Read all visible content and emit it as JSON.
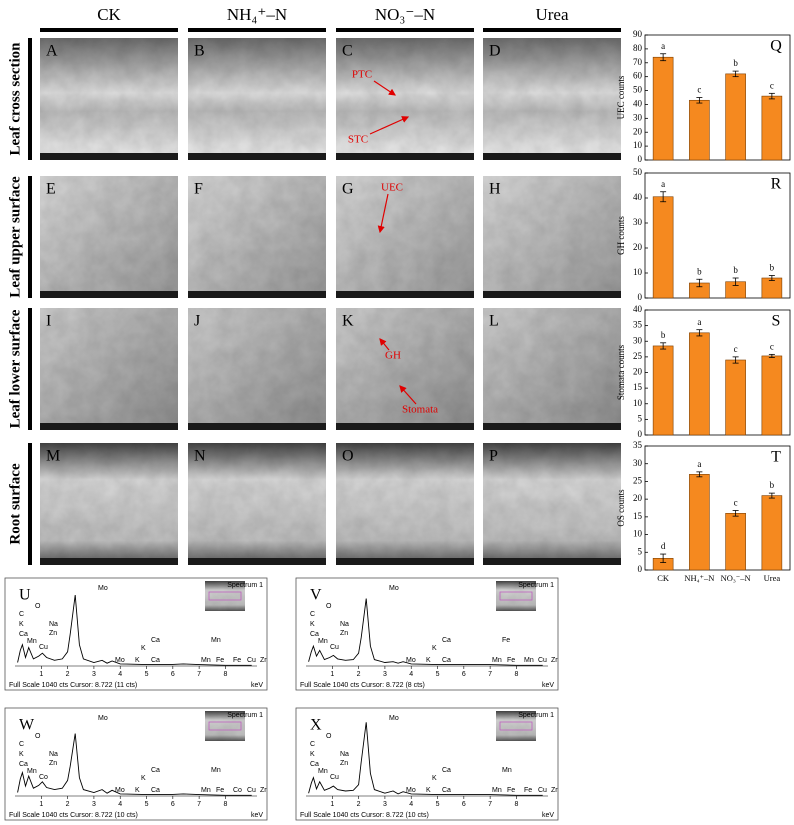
{
  "columns": [
    "CK",
    "NH₄⁺–N",
    "NO₃⁻–N",
    "Urea"
  ],
  "rows": [
    "Leaf cross section",
    "Leaf upper surface",
    "Leaf lower surface",
    "Root surface"
  ],
  "panels": [
    {
      "letter": "A"
    },
    {
      "letter": "B"
    },
    {
      "letter": "C",
      "annotations": [
        "PTC",
        "STC"
      ]
    },
    {
      "letter": "D"
    },
    {
      "letter": "E"
    },
    {
      "letter": "F"
    },
    {
      "letter": "G",
      "annotations": [
        "UEC"
      ]
    },
    {
      "letter": "H"
    },
    {
      "letter": "I"
    },
    {
      "letter": "J"
    },
    {
      "letter": "K",
      "annotations": [
        "GH",
        "Stomata"
      ]
    },
    {
      "letter": "L"
    },
    {
      "letter": "M"
    },
    {
      "letter": "N"
    },
    {
      "letter": "O"
    },
    {
      "letter": "P"
    }
  ],
  "chart_data": [
    {
      "type": "bar",
      "panel": "Q",
      "y_label": "UEC counts",
      "categories": [
        null,
        null,
        null,
        null
      ],
      "values": [
        74,
        43,
        62,
        46
      ],
      "errors": [
        2.5,
        2,
        2,
        2
      ],
      "annotations": [
        "a",
        "c",
        "b",
        "c"
      ],
      "color": "#f5891f",
      "ylim": [
        0,
        90
      ],
      "yticks": [
        0,
        10,
        20,
        30,
        40,
        50,
        60,
        70,
        80,
        90
      ]
    },
    {
      "type": "bar",
      "panel": "R",
      "y_label": "GH counts",
      "categories": [
        null,
        null,
        null,
        null
      ],
      "values": [
        40.5,
        6,
        6.5,
        8
      ],
      "errors": [
        2,
        1.5,
        1.5,
        1
      ],
      "annotations": [
        "a",
        "b",
        "b",
        "b"
      ],
      "color": "#f5891f",
      "ylim": [
        0,
        50
      ],
      "yticks": [
        0,
        10,
        20,
        30,
        40,
        50
      ]
    },
    {
      "type": "bar",
      "panel": "S",
      "y_label": "Stomata counts",
      "categories": [
        null,
        null,
        null,
        null
      ],
      "values": [
        28.5,
        32.7,
        24,
        25.3
      ],
      "errors": [
        1,
        1,
        1,
        0.5
      ],
      "annotations": [
        "b",
        "a",
        "c",
        "c"
      ],
      "color": "#f5891f",
      "ylim": [
        0,
        40
      ],
      "yticks": [
        0,
        5,
        10,
        15,
        20,
        25,
        30,
        35,
        40
      ]
    },
    {
      "type": "bar",
      "panel": "T",
      "y_label": "OS counts",
      "categories": [
        "CK",
        "NH₄⁺–N",
        "NO₃⁻–N",
        "Urea"
      ],
      "values": [
        3.3,
        27,
        16,
        21
      ],
      "errors": [
        1.2,
        0.7,
        0.8,
        0.7
      ],
      "annotations": [
        "d",
        "a",
        "c",
        "b"
      ],
      "color": "#f5891f",
      "ylim": [
        0,
        35
      ],
      "yticks": [
        0,
        5,
        10,
        15,
        20,
        25,
        30,
        35
      ]
    },
    {
      "type": "line",
      "panel": "U",
      "inset_label": "Spectrum 1",
      "x_label": "keV",
      "footer": "Full Scale 1040 cts Cursor: 8.722 (11 cts)",
      "color": "#000000",
      "element_labels": [
        "O",
        "C",
        "K",
        "Ca",
        "Mn",
        "Cu",
        "Na",
        "Zn",
        "Mo",
        "Mn",
        "K",
        "Ca",
        "Mo",
        "K",
        "Ca",
        "Mn",
        "Fe",
        "Fe",
        "Cu",
        "Zr"
      ],
      "x": [
        0.1,
        0.2,
        0.28,
        0.4,
        0.52,
        0.7,
        0.9,
        1.04,
        1.2,
        1.5,
        1.8,
        2.0,
        2.1,
        2.29,
        2.45,
        2.6,
        3.0,
        3.31,
        3.5,
        3.69,
        4.0,
        5.0,
        5.9,
        6.4,
        7.0,
        8.0,
        9.0
      ],
      "values": [
        5,
        22,
        30,
        12,
        26,
        10,
        14,
        18,
        12,
        8,
        10,
        20,
        45,
        100,
        30,
        10,
        5,
        8,
        4,
        7,
        3,
        2,
        2,
        3,
        2,
        1,
        1
      ],
      "xlim": [
        0,
        9.2
      ],
      "xticks": [
        1,
        2,
        3,
        4,
        5,
        6,
        7,
        8
      ],
      "ylim": [
        0,
        110
      ]
    },
    {
      "type": "line",
      "panel": "V",
      "inset_label": "Spectrum 1",
      "x_label": "keV",
      "footer": "Full Scale 1040 cts Cursor: 8.722 (8 cts)",
      "color": "#000000",
      "element_labels": [
        "O",
        "C",
        "K",
        "Ca",
        "Mn",
        "Cu",
        "Na",
        "Zn",
        "Mo",
        "Fe",
        "K",
        "Ca",
        "Mo",
        "K",
        "Ca",
        "Mn",
        "Fe",
        "Mn",
        "Cu",
        "Zr"
      ],
      "x": [
        0.1,
        0.2,
        0.28,
        0.4,
        0.52,
        0.7,
        0.9,
        1.04,
        1.2,
        1.5,
        1.8,
        2.0,
        2.1,
        2.29,
        2.45,
        2.6,
        3.0,
        3.31,
        3.5,
        3.69,
        4.0,
        5.0,
        5.9,
        6.4,
        7.0,
        8.0,
        9.0
      ],
      "values": [
        6,
        20,
        28,
        14,
        22,
        9,
        12,
        15,
        10,
        8,
        9,
        18,
        40,
        95,
        28,
        9,
        5,
        6,
        4,
        6,
        3,
        2,
        2,
        2,
        2,
        1,
        1
      ],
      "xlim": [
        0,
        9.2
      ],
      "xticks": [
        1,
        2,
        3,
        4,
        5,
        6,
        7,
        8
      ],
      "ylim": [
        0,
        110
      ]
    },
    {
      "type": "line",
      "panel": "W",
      "inset_label": "Spectrum 1",
      "x_label": "keV",
      "footer": "Full Scale 1040 cts Cursor: 8.722 (10 cts)",
      "color": "#000000",
      "element_labels": [
        "O",
        "C",
        "K",
        "Ca",
        "Mn",
        "Co",
        "Na",
        "Zn",
        "Mo",
        "Mn",
        "K",
        "Ca",
        "Mo",
        "K",
        "Ca",
        "Mn",
        "Fe",
        "Co",
        "Cu",
        "Zr"
      ],
      "x": [
        0.1,
        0.2,
        0.28,
        0.4,
        0.52,
        0.7,
        0.9,
        1.04,
        1.2,
        1.5,
        1.8,
        2.0,
        2.1,
        2.29,
        2.45,
        2.6,
        3.0,
        3.31,
        3.5,
        3.69,
        4.0,
        5.0,
        5.9,
        6.4,
        7.0,
        8.0,
        9.0
      ],
      "values": [
        5,
        24,
        33,
        14,
        28,
        11,
        15,
        20,
        12,
        9,
        11,
        22,
        42,
        88,
        26,
        9,
        5,
        9,
        4,
        8,
        3,
        2,
        2,
        3,
        2,
        1,
        1
      ],
      "xlim": [
        0,
        9.2
      ],
      "xticks": [
        1,
        2,
        3,
        4,
        5,
        6,
        7,
        8
      ],
      "ylim": [
        0,
        110
      ]
    },
    {
      "type": "line",
      "panel": "X",
      "inset_label": "Spectrum 1",
      "x_label": "keV",
      "footer": "Full Scale 1040 cts Cursor: 8.722 (10 cts)",
      "color": "#000000",
      "element_labels": [
        "O",
        "C",
        "K",
        "Ca",
        "Mn",
        "Cu",
        "Na",
        "Zn",
        "Mo",
        "Mn",
        "K",
        "Ca",
        "Mo",
        "K",
        "Ca",
        "Mn",
        "Fe",
        "Fe",
        "Cu",
        "Zr"
      ],
      "x": [
        0.1,
        0.2,
        0.28,
        0.4,
        0.52,
        0.7,
        0.9,
        1.04,
        1.2,
        1.5,
        1.8,
        2.0,
        2.1,
        2.29,
        2.45,
        2.6,
        3.0,
        3.31,
        3.5,
        3.69,
        4.0,
        5.0,
        5.9,
        6.4,
        7.0,
        8.0,
        9.0
      ],
      "values": [
        4,
        18,
        26,
        10,
        20,
        8,
        11,
        14,
        9,
        7,
        8,
        16,
        48,
        104,
        32,
        9,
        4,
        7,
        3,
        6,
        3,
        2,
        2,
        2,
        2,
        1,
        1
      ],
      "xlim": [
        0,
        9.2
      ],
      "xticks": [
        1,
        2,
        3,
        4,
        5,
        6,
        7,
        8
      ],
      "ylim": [
        0,
        110
      ]
    }
  ]
}
